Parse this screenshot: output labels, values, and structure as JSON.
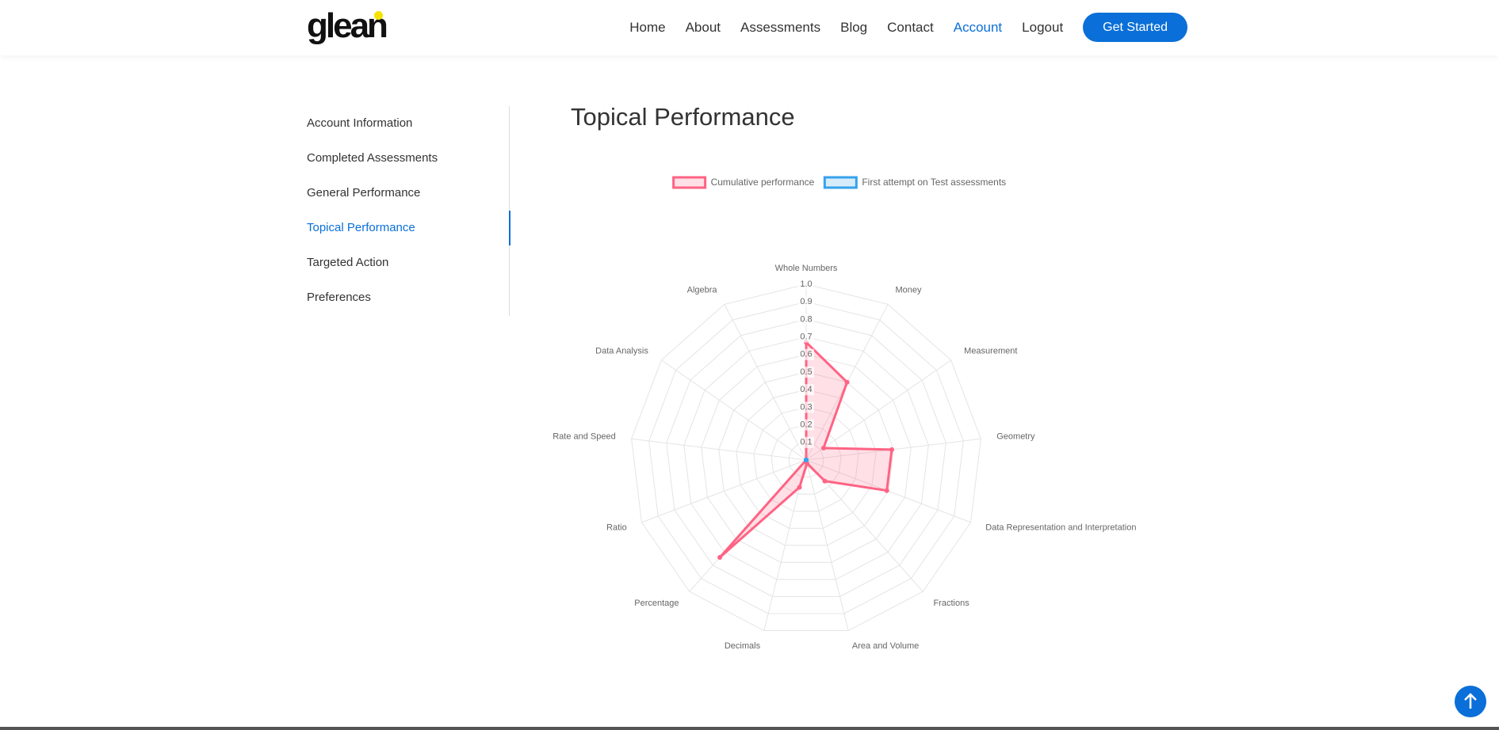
{
  "header": {
    "logo": "glean",
    "nav": [
      "Home",
      "About",
      "Assessments",
      "Blog",
      "Contact",
      "Account",
      "Logout"
    ],
    "active_nav": 5,
    "button": "Get Started"
  },
  "sidebar": {
    "items": [
      "Account Information",
      "Completed Assessments",
      "General Performance",
      "Topical Performance",
      "Targeted Action",
      "Preferences"
    ],
    "active": 3
  },
  "page_title": "Topical Performance",
  "chart_data": {
    "type": "radar",
    "categories": [
      "Whole Numbers",
      "Money",
      "Measurement",
      "Geometry",
      "Data Representation and Interpretation",
      "Fractions",
      "Area and Volume",
      "Decimals",
      "Percentage",
      "Ratio",
      "Rate and Speed",
      "Data Analysis",
      "Algebra"
    ],
    "series": [
      {
        "name": "Cumulative performance",
        "color": "#ff6384",
        "values": [
          0.67,
          0.5,
          0.12,
          0.49,
          0.49,
          0.16,
          0.02,
          0.16,
          0.74,
          0,
          0,
          0,
          0
        ]
      },
      {
        "name": "First attempt on Test assessments",
        "color": "#36a2eb",
        "values": [
          0,
          0,
          0,
          0,
          0,
          0,
          0,
          0,
          0,
          0,
          0,
          0,
          0
        ]
      }
    ],
    "rlim": [
      0,
      1
    ],
    "rticks": [
      0.1,
      0.2,
      0.3,
      0.4,
      0.5,
      0.6,
      0.7,
      0.8,
      0.9,
      {
        "value": 1,
        "label": "1.0"
      }
    ],
    "grid": true,
    "legend": "top"
  }
}
